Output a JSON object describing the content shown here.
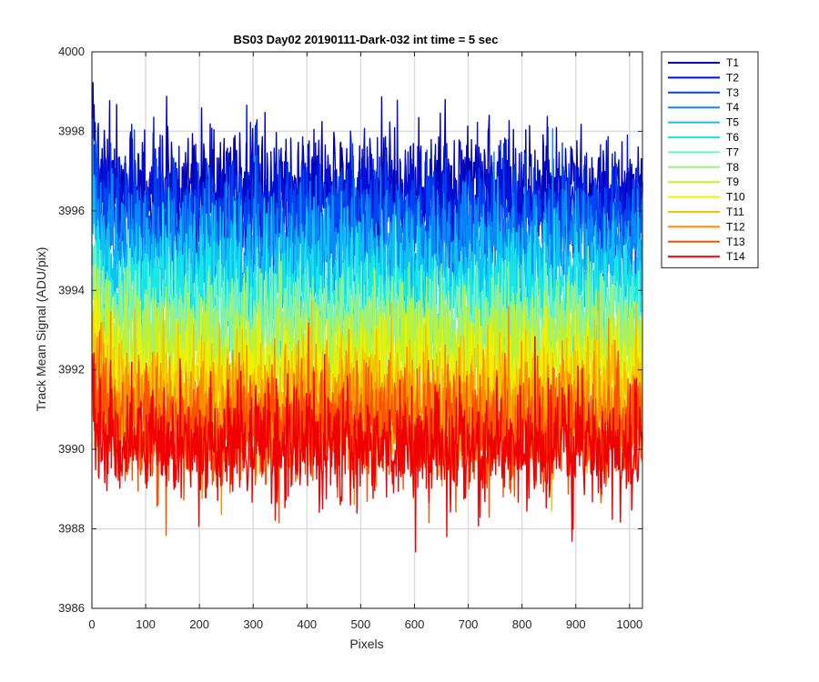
{
  "chart_data": {
    "type": "line",
    "title": "BS03 Day02 20190111-Dark-032 int time = 5 sec",
    "xlabel": "Pixels",
    "ylabel": "Track Mean Signal (ADU/pix)",
    "xlim": [
      0,
      1024
    ],
    "ylim": [
      3986,
      4000
    ],
    "xticks": [
      0,
      100,
      200,
      300,
      400,
      500,
      600,
      700,
      800,
      900,
      1000
    ],
    "yticks": [
      3986,
      3988,
      3990,
      3992,
      3994,
      3996,
      3998,
      4000
    ],
    "grid": true,
    "legend_position": "outside-right",
    "n_points": 1024,
    "series": [
      {
        "name": "T1",
        "color": "#0000b3",
        "mean": 3996.5,
        "noise": 0.75,
        "start_offset": 1.2
      },
      {
        "name": "T2",
        "color": "#0010d8",
        "mean": 3996.2,
        "noise": 0.75,
        "start_offset": 1.2
      },
      {
        "name": "T3",
        "color": "#0046f2",
        "mean": 3995.7,
        "noise": 0.75,
        "start_offset": 1.1
      },
      {
        "name": "T4",
        "color": "#0a8af7",
        "mean": 3995.1,
        "noise": 0.75,
        "start_offset": 1.0
      },
      {
        "name": "T5",
        "color": "#10c0f2",
        "mean": 3994.5,
        "noise": 0.75,
        "start_offset": 1.0
      },
      {
        "name": "T6",
        "color": "#18e8e8",
        "mean": 3993.9,
        "noise": 0.75,
        "start_offset": 0.9
      },
      {
        "name": "T7",
        "color": "#6ff2c6",
        "mean": 3993.3,
        "noise": 0.75,
        "start_offset": 0.9
      },
      {
        "name": "T8",
        "color": "#a0f07a",
        "mean": 3992.8,
        "noise": 0.75,
        "start_offset": 0.9
      },
      {
        "name": "T9",
        "color": "#c6f224",
        "mean": 3992.3,
        "noise": 0.75,
        "start_offset": 0.8
      },
      {
        "name": "T10",
        "color": "#f0f000",
        "mean": 3991.8,
        "noise": 0.75,
        "start_offset": 0.8
      },
      {
        "name": "T11",
        "color": "#f6c000",
        "mean": 3991.3,
        "noise": 0.75,
        "start_offset": 0.8
      },
      {
        "name": "T12",
        "color": "#fa8c00",
        "mean": 3990.9,
        "noise": 0.75,
        "start_offset": 0.7
      },
      {
        "name": "T13",
        "color": "#fa5000",
        "mean": 3990.5,
        "noise": 0.75,
        "start_offset": 0.7
      },
      {
        "name": "T14",
        "color": "#f00000",
        "mean": 3990.1,
        "noise": 0.75,
        "start_offset": 0.7
      }
    ]
  }
}
